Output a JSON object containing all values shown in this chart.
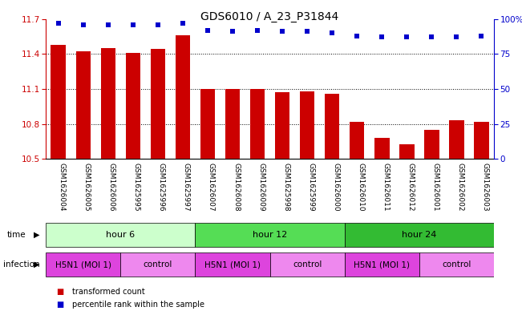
{
  "title": "GDS6010 / A_23_P31844",
  "samples": [
    "GSM1626004",
    "GSM1626005",
    "GSM1626006",
    "GSM1625995",
    "GSM1625996",
    "GSM1625997",
    "GSM1626007",
    "GSM1626008",
    "GSM1626009",
    "GSM1625998",
    "GSM1625999",
    "GSM1626000",
    "GSM1626010",
    "GSM1626011",
    "GSM1626012",
    "GSM1626001",
    "GSM1626002",
    "GSM1626003"
  ],
  "bar_values": [
    11.48,
    11.42,
    11.45,
    11.41,
    11.44,
    11.56,
    11.1,
    11.1,
    11.1,
    11.07,
    11.08,
    11.06,
    10.82,
    10.68,
    10.63,
    10.75,
    10.83,
    10.82
  ],
  "dot_values": [
    97,
    96,
    96,
    96,
    96,
    97,
    92,
    91,
    92,
    91,
    91,
    90,
    88,
    87,
    87,
    87,
    87,
    88
  ],
  "ylim": [
    10.5,
    11.7
  ],
  "y2lim": [
    0,
    100
  ],
  "yticks": [
    10.5,
    10.8,
    11.1,
    11.4,
    11.7
  ],
  "y2ticks": [
    0,
    25,
    50,
    75,
    100
  ],
  "bar_color": "#cc0000",
  "dot_color": "#0000cc",
  "bar_width": 0.6,
  "time_groups": [
    {
      "label": "hour 6",
      "start": 0,
      "end": 6,
      "color": "#ccffcc"
    },
    {
      "label": "hour 12",
      "start": 6,
      "end": 12,
      "color": "#55dd55"
    },
    {
      "label": "hour 24",
      "start": 12,
      "end": 18,
      "color": "#33bb33"
    }
  ],
  "infection_groups": [
    {
      "label": "H5N1 (MOI 1)",
      "start": 0,
      "end": 3,
      "color": "#dd44dd"
    },
    {
      "label": "control",
      "start": 3,
      "end": 6,
      "color": "#ee88ee"
    },
    {
      "label": "H5N1 (MOI 1)",
      "start": 6,
      "end": 9,
      "color": "#dd44dd"
    },
    {
      "label": "control",
      "start": 9,
      "end": 12,
      "color": "#ee88ee"
    },
    {
      "label": "H5N1 (MOI 1)",
      "start": 12,
      "end": 15,
      "color": "#dd44dd"
    },
    {
      "label": "control",
      "start": 15,
      "end": 18,
      "color": "#ee88ee"
    }
  ],
  "sample_bg_color": "#cccccc",
  "bg_color": "#ffffff",
  "axis_color_left": "#cc0000",
  "axis_color_right": "#0000cc",
  "title_fontsize": 10,
  "tick_fontsize": 7.5,
  "sample_label_fontsize": 6.5,
  "row_label_fontsize": 7.5,
  "row_text_fontsize": 8
}
